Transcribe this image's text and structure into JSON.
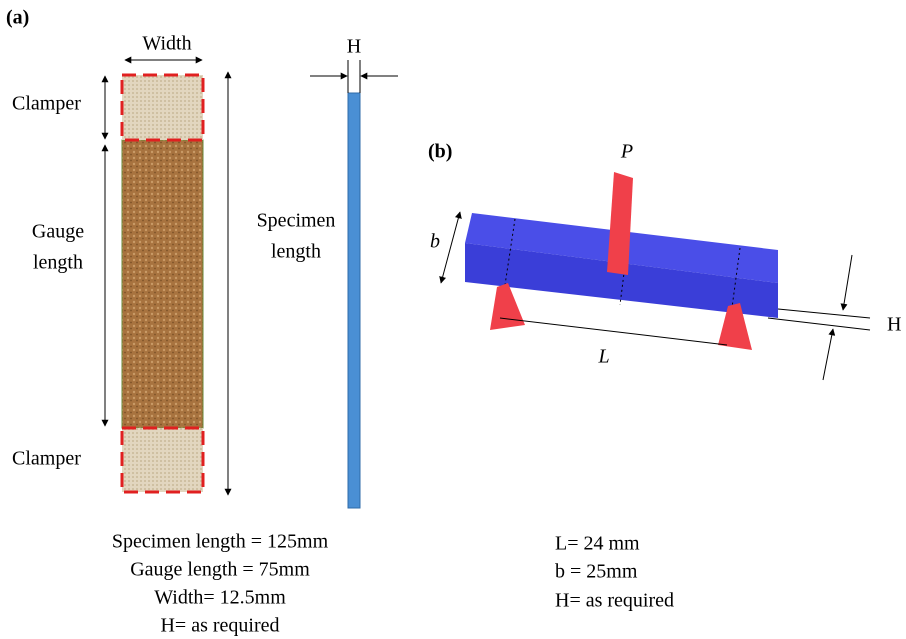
{
  "panel_a": {
    "label": "(a)",
    "width_label": "Width",
    "h_label": "H",
    "clamper_top": "Clamper",
    "gauge_length": [
      "Gauge",
      "length"
    ],
    "specimen_length": [
      "Specimen",
      "length"
    ],
    "clamper_bottom": "Clamper",
    "captions": [
      "Specimen length = 125mm",
      "Gauge length = 75mm",
      "Width= 12.5mm",
      "H= as required"
    ]
  },
  "panel_b": {
    "label": "(b)",
    "p_label": "P",
    "b_label": "b",
    "h_label": "H",
    "l_label": "L",
    "captions": [
      "L= 24 mm",
      "b = 25mm",
      "H= as required"
    ]
  }
}
